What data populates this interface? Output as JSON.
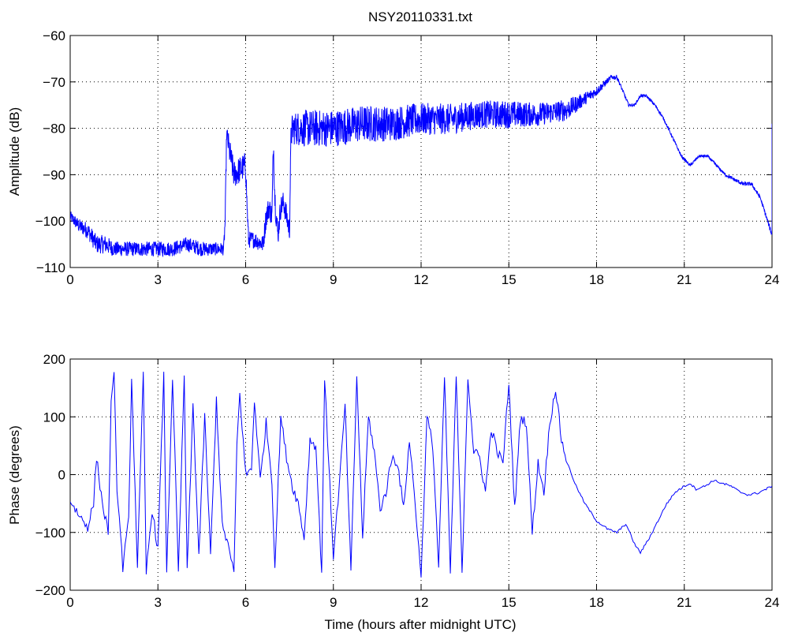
{
  "chart_data": [
    {
      "type": "line",
      "title": "NSY20110331.txt",
      "xlabel": "",
      "ylabel": "Amplitude (dB)",
      "xlim": [
        0,
        24
      ],
      "ylim": [
        -110,
        -60
      ],
      "xticks": [
        "0",
        "3",
        "6",
        "9",
        "12",
        "15",
        "18",
        "21",
        "24"
      ],
      "yticks": [
        "−60",
        "−70",
        "−80",
        "−90",
        "−100",
        "−110"
      ],
      "grid": true,
      "series": [
        {
          "color": "#0000ff",
          "x": [
            0,
            0.3,
            0.6,
            0.9,
            1.2,
            1.5,
            2.0,
            2.5,
            3.0,
            3.5,
            4.0,
            4.5,
            5.0,
            5.25,
            5.3,
            5.35,
            5.45,
            5.6,
            5.8,
            6.0,
            6.05,
            6.1,
            6.3,
            6.6,
            6.7,
            6.8,
            6.9,
            6.95,
            7.0,
            7.1,
            7.2,
            7.3,
            7.5,
            7.55,
            7.6,
            8.0,
            9.0,
            10.0,
            11.0,
            12.0,
            13.0,
            14.0,
            15.0,
            16.0,
            17.0,
            17.5,
            18.0,
            18.5,
            18.7,
            18.9,
            19.1,
            19.3,
            19.5,
            19.7,
            20.0,
            20.3,
            20.6,
            20.9,
            21.2,
            21.5,
            21.8,
            22.1,
            22.4,
            22.7,
            23.0,
            23.3,
            23.6,
            23.8,
            24.0,
            24.0
          ],
          "values": [
            -99,
            -101,
            -102,
            -105,
            -105,
            -106,
            -106,
            -106,
            -106,
            -106,
            -105,
            -106,
            -106,
            -106,
            -100,
            -81,
            -85,
            -90,
            -89,
            -88,
            -97,
            -104,
            -104,
            -105,
            -99,
            -97,
            -99,
            -83,
            -95,
            -103,
            -97,
            -96,
            -102,
            -82,
            -80,
            -80,
            -80,
            -79,
            -79,
            -78,
            -78,
            -77,
            -77,
            -77,
            -76,
            -74,
            -72,
            -69,
            -69,
            -72,
            -75,
            -75,
            -73,
            -73,
            -75,
            -78,
            -82,
            -86,
            -88,
            -86,
            -86,
            -88,
            -90,
            -91,
            -92,
            -92,
            -95,
            -99,
            -103,
            -79
          ],
          "noise": [
            1.2,
            1.5,
            1.8,
            2.0,
            2.0,
            1.6,
            1.6,
            1.6,
            1.6,
            1.6,
            1.6,
            1.6,
            1.4,
            1.4,
            2.0,
            2.0,
            3.0,
            3.0,
            3.0,
            3.0,
            2.0,
            1.8,
            1.8,
            2.0,
            2.5,
            2.5,
            2.5,
            3.0,
            3.0,
            3.0,
            2.5,
            2.5,
            2.5,
            2.5,
            3.5,
            4.0,
            4.0,
            4.0,
            3.8,
            3.5,
            3.3,
            3.0,
            3.0,
            2.5,
            2.3,
            1.5,
            1.0,
            0.5,
            0.5,
            0.4,
            0.3,
            0.3,
            0.3,
            0.3,
            0.3,
            0.3,
            0.3,
            0.3,
            0.3,
            0.3,
            0.3,
            0.3,
            0.3,
            0.4,
            0.4,
            0.4,
            0.4,
            0.5,
            0.5,
            0.5
          ]
        }
      ]
    },
    {
      "type": "line",
      "title": "",
      "xlabel": "Time (hours after midnight UTC)",
      "ylabel": "Phase (degrees)",
      "xlim": [
        0,
        24
      ],
      "ylim": [
        -200,
        200
      ],
      "xticks": [
        "0",
        "3",
        "6",
        "9",
        "12",
        "15",
        "18",
        "21",
        "24"
      ],
      "yticks": [
        "200",
        "100",
        "0",
        "−100",
        "−200"
      ],
      "grid": true,
      "series": [
        {
          "color": "#0000ff",
          "x": [
            0,
            0.3,
            0.6,
            0.8,
            0.9,
            1.1,
            1.3,
            1.4,
            1.5,
            1.6,
            1.8,
            2.0,
            2.1,
            2.3,
            2.5,
            2.6,
            2.8,
            3.0,
            3.2,
            3.3,
            3.5,
            3.7,
            3.9,
            4.0,
            4.2,
            4.4,
            4.6,
            4.8,
            5.0,
            5.2,
            5.4,
            5.5,
            5.6,
            5.7,
            5.8,
            6.0,
            6.2,
            6.3,
            6.5,
            6.7,
            6.9,
            7.0,
            7.2,
            7.4,
            7.6,
            7.8,
            8.0,
            8.2,
            8.4,
            8.6,
            8.7,
            8.8,
            9.0,
            9.2,
            9.4,
            9.6,
            9.8,
            10.0,
            10.2,
            10.4,
            10.6,
            10.8,
            11.0,
            11.2,
            11.4,
            11.6,
            11.8,
            12.0,
            12.2,
            12.4,
            12.6,
            12.8,
            13.0,
            13.2,
            13.4,
            13.6,
            13.8,
            14.0,
            14.2,
            14.4,
            14.6,
            14.8,
            15.0,
            15.2,
            15.4,
            15.6,
            15.8,
            16.0,
            16.2,
            16.4,
            16.6,
            16.8,
            17.0,
            17.3,
            17.6,
            18.0,
            18.4,
            18.7,
            19.0,
            19.3,
            19.5,
            19.8,
            20.1,
            20.4,
            20.7,
            21.0,
            21.2,
            21.4,
            21.7,
            22.0,
            22.3,
            22.6,
            22.9,
            23.2,
            23.5,
            23.8,
            24.0
          ],
          "values": [
            -45,
            -70,
            -90,
            -50,
            30,
            -50,
            -100,
            120,
            170,
            -20,
            -160,
            -80,
            170,
            -160,
            170,
            -170,
            -60,
            -130,
            170,
            -170,
            170,
            -170,
            170,
            -170,
            120,
            -140,
            100,
            -140,
            130,
            -90,
            -120,
            -150,
            -170,
            50,
            140,
            0,
            10,
            130,
            -10,
            90,
            -10,
            -160,
            100,
            30,
            -20,
            -50,
            -110,
            60,
            50,
            -170,
            170,
            60,
            -140,
            -20,
            120,
            -170,
            170,
            -110,
            100,
            40,
            -60,
            -30,
            30,
            20,
            -60,
            60,
            -50,
            -180,
            100,
            50,
            -160,
            170,
            -170,
            170,
            -170,
            170,
            40,
            30,
            -30,
            80,
            40,
            20,
            160,
            -60,
            100,
            90,
            -100,
            20,
            -30,
            90,
            150,
            60,
            20,
            -20,
            -50,
            -80,
            -95,
            -100,
            -85,
            -120,
            -135,
            -110,
            -80,
            -50,
            -30,
            -20,
            -15,
            -25,
            -20,
            -10,
            -15,
            -20,
            -30,
            -35,
            -32,
            -25,
            -20
          ]
        }
      ]
    }
  ]
}
